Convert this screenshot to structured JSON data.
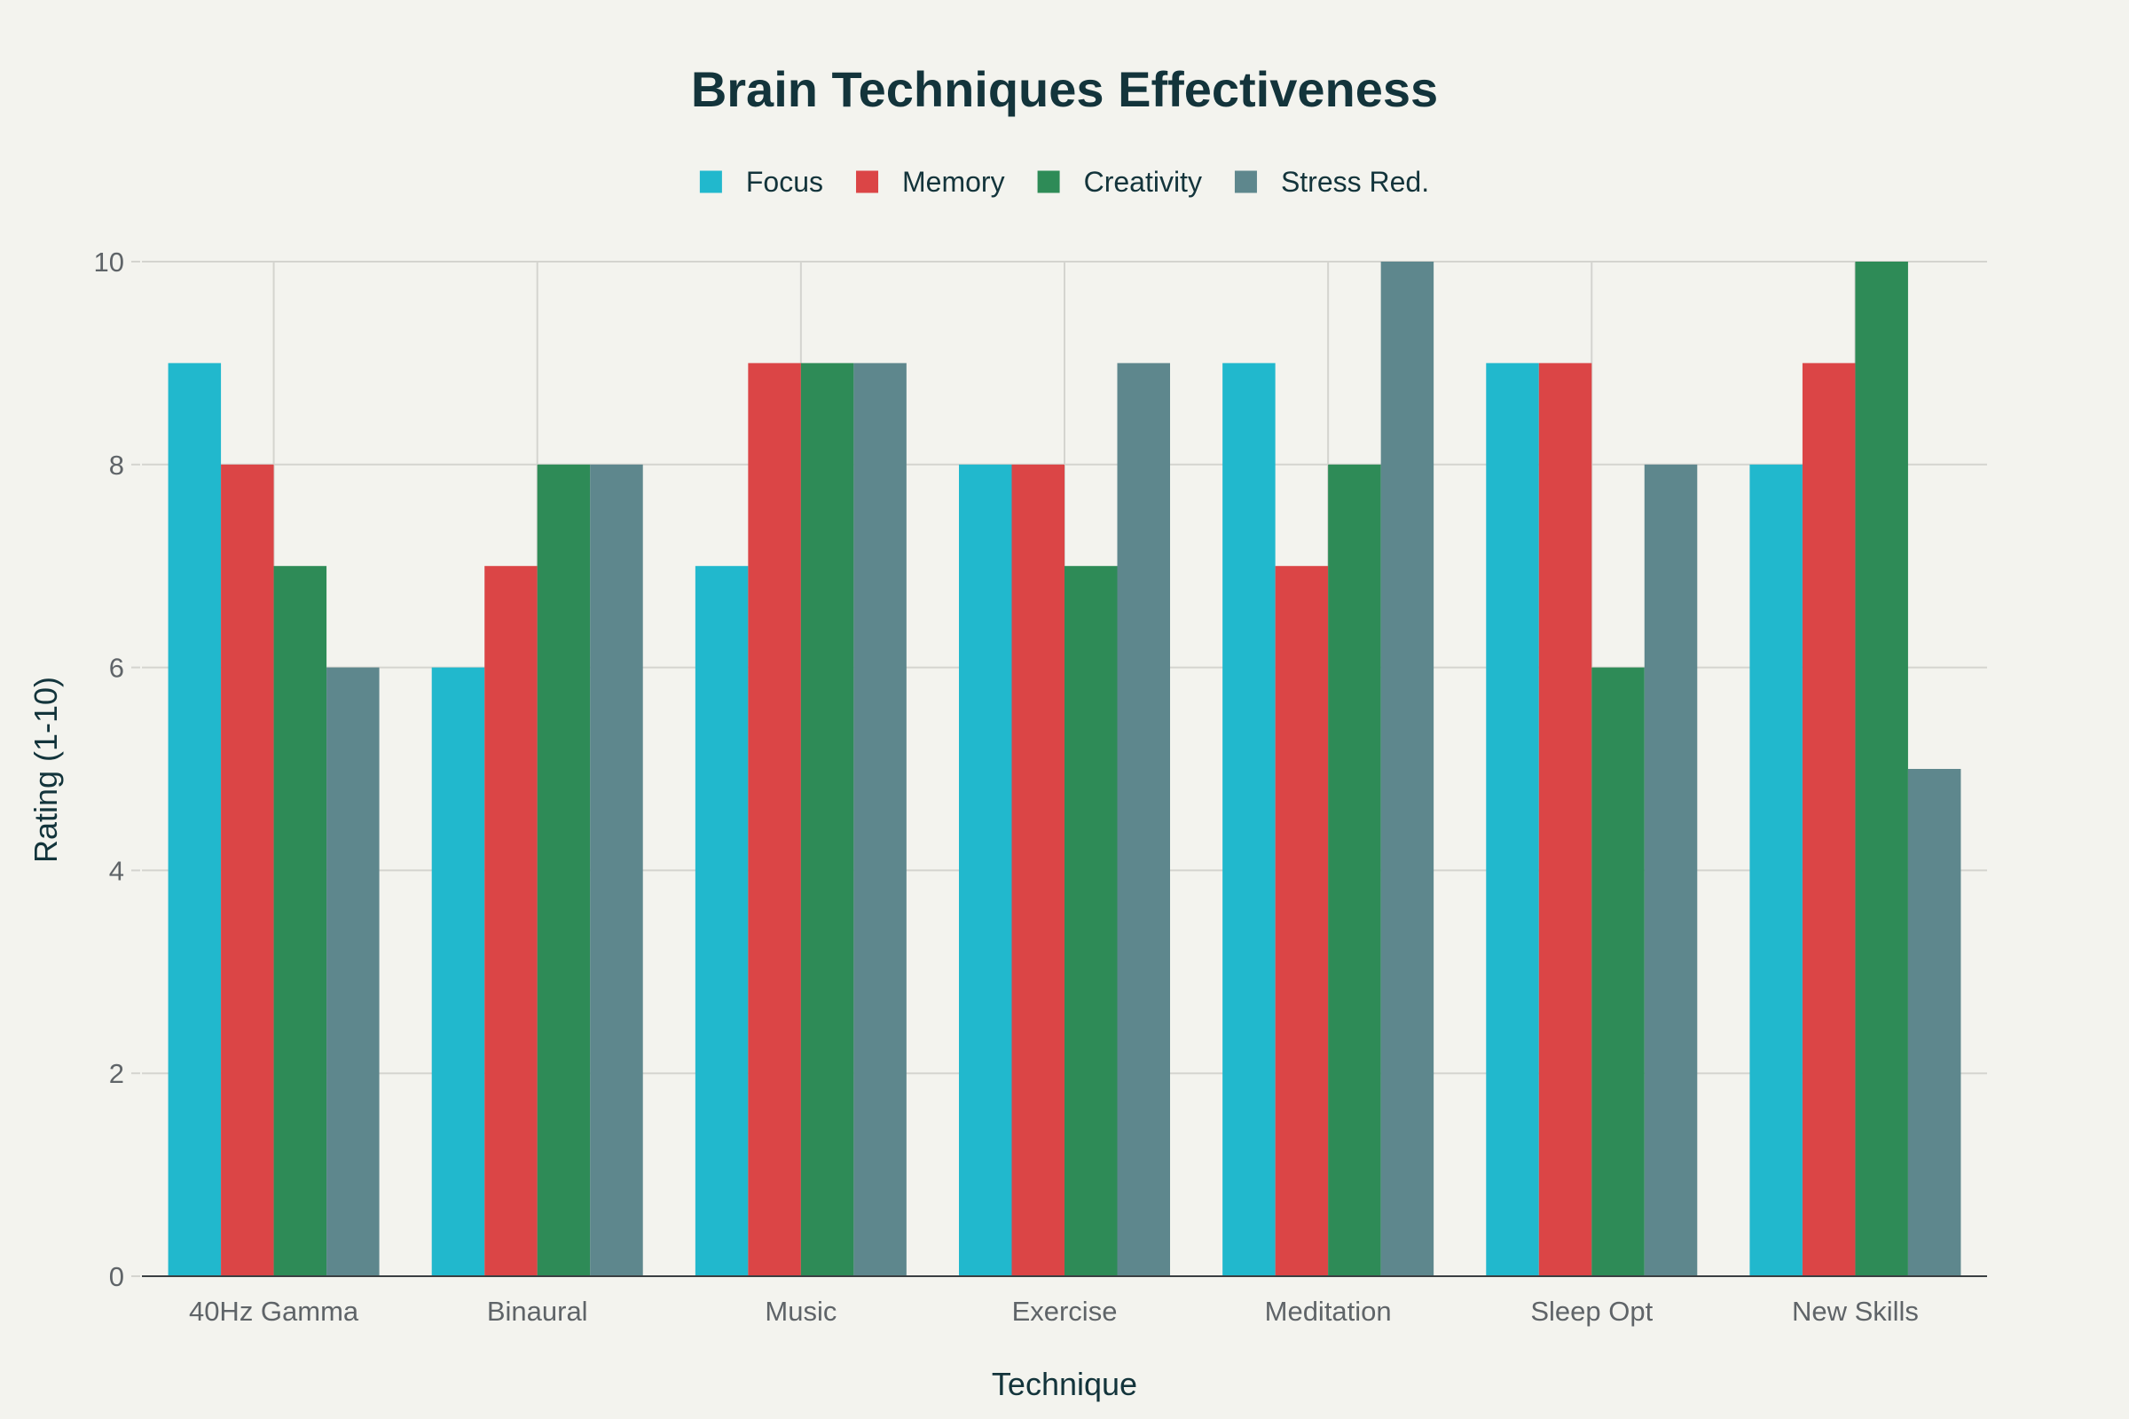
{
  "chart_data": {
    "type": "bar",
    "title": "Brain Techniques Effectiveness",
    "xlabel": "Technique",
    "ylabel": "Rating (1-10)",
    "categories": [
      "40Hz Gamma",
      "Binaural",
      "Music",
      "Exercise",
      "Meditation",
      "Sleep Opt",
      "New Skills"
    ],
    "series": [
      {
        "name": "Focus",
        "color": "#21b8cd",
        "values": [
          9,
          6,
          7,
          8,
          9,
          9,
          8
        ]
      },
      {
        "name": "Memory",
        "color": "#db4546",
        "values": [
          8,
          7,
          9,
          8,
          7,
          9,
          9
        ]
      },
      {
        "name": "Creativity",
        "color": "#2e8b57",
        "values": [
          7,
          8,
          9,
          7,
          8,
          6,
          10
        ]
      },
      {
        "name": "Stress Red.",
        "color": "#5e878d",
        "values": [
          6,
          8,
          9,
          9,
          10,
          8,
          5
        ]
      }
    ],
    "ylim": [
      0,
      10
    ],
    "yticks": [
      0,
      2,
      4,
      6,
      8,
      10
    ],
    "grid": true,
    "legend_position": "top"
  }
}
